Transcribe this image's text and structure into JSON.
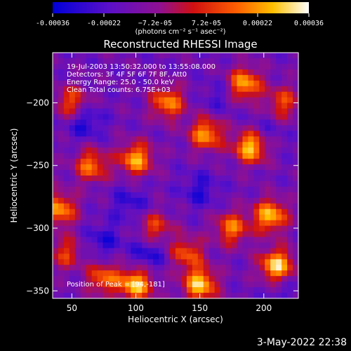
{
  "chart_data": {
    "type": "heatmap",
    "title": "Reconstructed RHESSI Image",
    "xlabel": "Heliocentric X (arcsec)",
    "ylabel": "Heliocentric Y (arcsec)",
    "xlim": [
      35,
      227
    ],
    "ylim": [
      -356,
      -160
    ],
    "x_ticks": [
      50,
      100,
      150,
      200
    ],
    "y_ticks": [
      -200,
      -250,
      -300,
      -350
    ],
    "colorbar": {
      "ticks": [
        "-0.00036",
        "-0.00022",
        "−7.2e-05",
        "7.2e-05",
        "0.00022",
        "0.00036"
      ],
      "units": "(photons cm⁻² s⁻¹ asec⁻²)",
      "range": [
        -0.00036,
        0.00036
      ],
      "colormap": "blue-purple-red-orange-yellow-white"
    },
    "annotations": [
      "19-Jul-2003 13:50:32.000 to 13:55:08.000",
      "Detectors: 3F 4F 5F 6F 7F 8F, Att0",
      "Energy Range: 25.0 - 50.0 keV",
      "Clean     Total counts: 6.75E+03"
    ],
    "peak_label": "Position of Peak = [94,-181]",
    "peak_position": [
      94,
      -181
    ],
    "date_stamp": "3-May-2022 22:38",
    "hotspots": [
      [
        190,
        -235,
        1.0
      ],
      [
        210,
        -330,
        1.0
      ],
      [
        150,
        -345,
        0.95
      ],
      [
        205,
        -290,
        0.9
      ],
      [
        100,
        -345,
        0.95
      ],
      [
        185,
        -185,
        0.85
      ],
      [
        155,
        -225,
        0.8
      ],
      [
        100,
        -245,
        0.85
      ],
      [
        40,
        -285,
        0.8
      ],
      [
        65,
        -250,
        0.7
      ],
      [
        175,
        -300,
        0.7
      ],
      [
        125,
        -200,
        0.75
      ],
      [
        50,
        -200,
        0.6
      ],
      [
        140,
        -320,
        0.6
      ],
      [
        75,
        -340,
        0.65
      ],
      [
        115,
        -300,
        0.55
      ],
      [
        215,
        -200,
        0.55
      ],
      [
        45,
        -320,
        0.5
      ]
    ],
    "coldspots": [
      [
        60,
        -215,
        0.75
      ],
      [
        110,
        -320,
        0.7
      ],
      [
        95,
        -280,
        0.55
      ],
      [
        150,
        -270,
        0.6
      ],
      [
        200,
        -225,
        0.45
      ],
      [
        75,
        -310,
        0.6
      ],
      [
        165,
        -195,
        0.4
      ],
      [
        215,
        -350,
        0.35
      ]
    ],
    "grid": false
  }
}
